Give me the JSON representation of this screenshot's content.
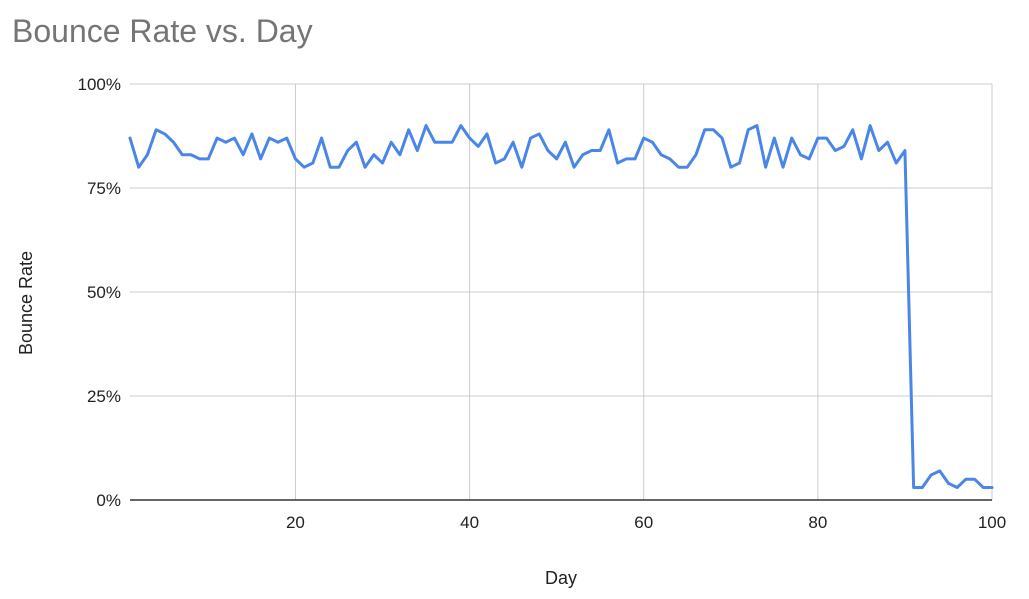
{
  "chart_data": {
    "type": "line",
    "title": "Bounce Rate vs. Day",
    "xlabel": "Day",
    "ylabel": "Bounce Rate",
    "xlim": [
      1,
      100
    ],
    "ylim": [
      0,
      100
    ],
    "x_ticks": [
      20,
      40,
      60,
      80,
      100
    ],
    "y_ticks": [
      0,
      25,
      50,
      75,
      100
    ],
    "y_tick_labels": [
      "0%",
      "25%",
      "50%",
      "75%",
      "100%"
    ],
    "grid": true,
    "legend": "none",
    "series": [
      {
        "color": "#4a86e8",
        "x": [
          1,
          2,
          3,
          4,
          5,
          6,
          7,
          8,
          9,
          10,
          11,
          12,
          13,
          14,
          15,
          16,
          17,
          18,
          19,
          20,
          21,
          22,
          23,
          24,
          25,
          26,
          27,
          28,
          29,
          30,
          31,
          32,
          33,
          34,
          35,
          36,
          37,
          38,
          39,
          40,
          41,
          42,
          43,
          44,
          45,
          46,
          47,
          48,
          49,
          50,
          51,
          52,
          53,
          54,
          55,
          56,
          57,
          58,
          59,
          60,
          61,
          62,
          63,
          64,
          65,
          66,
          67,
          68,
          69,
          70,
          71,
          72,
          73,
          74,
          75,
          76,
          77,
          78,
          79,
          80,
          81,
          82,
          83,
          84,
          85,
          86,
          87,
          88,
          89,
          90,
          91,
          92,
          93,
          94,
          95,
          96,
          97,
          98,
          99,
          100
        ],
        "values": [
          87,
          80,
          83,
          89,
          88,
          86,
          83,
          83,
          82,
          82,
          87,
          86,
          87,
          83,
          88,
          82,
          87,
          86,
          87,
          82,
          80,
          81,
          87,
          80,
          80,
          84,
          86,
          80,
          83,
          81,
          86,
          83,
          89,
          84,
          90,
          86,
          86,
          86,
          90,
          87,
          85,
          88,
          81,
          82,
          86,
          80,
          87,
          88,
          84,
          82,
          86,
          80,
          83,
          84,
          84,
          89,
          81,
          82,
          82,
          87,
          86,
          83,
          82,
          80,
          80,
          83,
          89,
          89,
          87,
          80,
          81,
          89,
          90,
          80,
          87,
          80,
          87,
          83,
          82,
          87,
          87,
          84,
          85,
          89,
          82,
          90,
          84,
          86,
          81,
          84,
          3,
          3,
          6,
          7,
          4,
          3,
          5,
          5,
          3,
          3
        ]
      }
    ]
  }
}
